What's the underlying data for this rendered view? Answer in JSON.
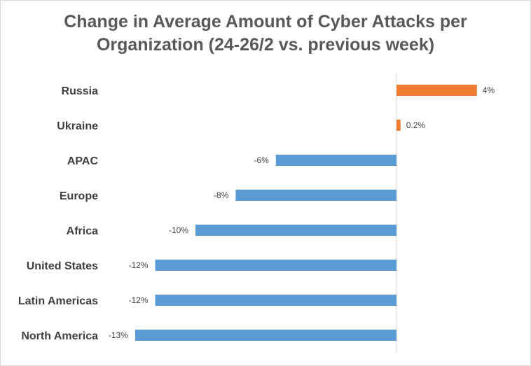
{
  "chart_data": {
    "type": "bar",
    "orientation": "horizontal",
    "title": "Change in Average Amount of Cyber Attacks per Organization (24-26/2 vs. previous week)",
    "title_lines": [
      "Change in Average Amount of Cyber Attacks per",
      "Organization (24-26/2 vs. previous week)"
    ],
    "xlabel": "",
    "ylabel": "",
    "xlim": [
      -13.5,
      4.5
    ],
    "grid": false,
    "legend": "none",
    "categories": [
      "Russia",
      "Ukraine",
      "APAC",
      "Europe",
      "Africa",
      "United States",
      "Latin Americas",
      "North America"
    ],
    "values": [
      4,
      0.2,
      -6,
      -8,
      -10,
      -12,
      -12,
      -13
    ],
    "data_labels": [
      "4%",
      "0.2%",
      "-6%",
      "-8%",
      "-10%",
      "-12%",
      "-12%",
      "-13%"
    ],
    "colors": {
      "positive": "#ed7d31",
      "negative": "#5b9bd5",
      "axis": "#d9d9d9"
    }
  }
}
